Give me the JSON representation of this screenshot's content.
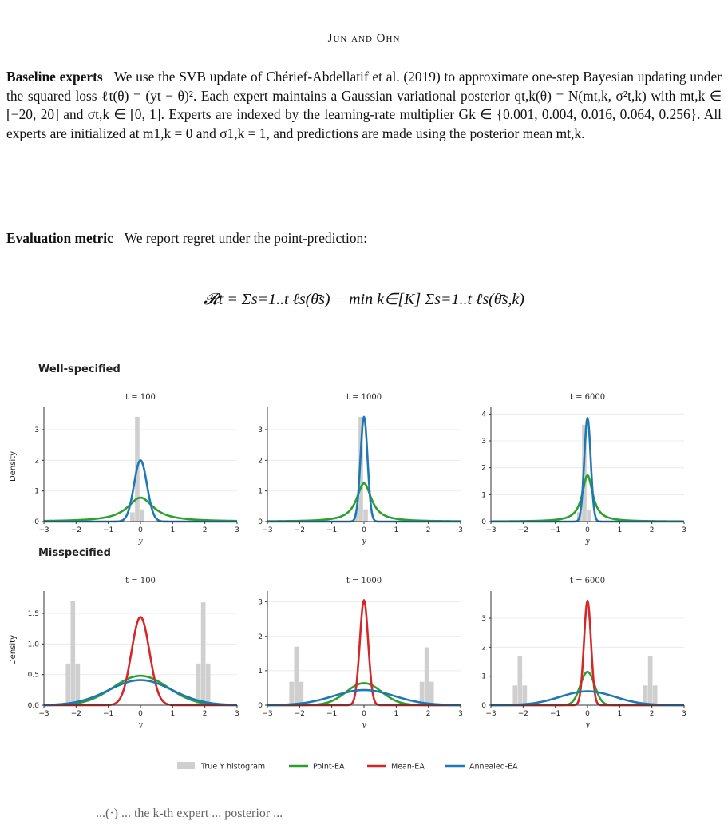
{
  "header": "Jun and Ohn",
  "para1": {
    "heading": "Baseline experts",
    "text": "We use the SVB update of Chérief-Abdellatif et al. (2019) to approximate one-step Bayesian updating under the squared loss ℓt(θ) = (yt − θ)². Each expert maintains a Gaussian variational posterior qt,k(θ) = N(mt,k, σ²t,k) with mt,k ∈ [−20, 20] and σt,k ∈ [0, 1]. Experts are indexed by the learning-rate multiplier Gk ∈ {0.001, 0.004, 0.016, 0.064, 0.256}. All experts are initialized at m1,k = 0 and σ1,k = 1, and predictions are made using the posterior mean mt,k."
  },
  "para2": {
    "heading": "Evaluation metric",
    "text": "We report regret under the point-prediction:"
  },
  "formula": "𝓡t = Σs=1..t ℓs(θ̄s) − min k∈[K] Σs=1..t ℓs(θ̄s,k)",
  "colors": {
    "hist": "#cfcfcf",
    "point": "#2ca02c",
    "mean": "#d62728",
    "annealed": "#1f77b4"
  },
  "chart_data": [
    {
      "type": "line",
      "row_title": "Well-specified",
      "title": "t = 100",
      "xlabel": "y",
      "ylabel": "Density",
      "xlim": [
        -3,
        3
      ],
      "ylim": [
        0,
        3.6
      ],
      "xticks": [
        -3,
        -2,
        -1,
        0,
        1,
        2,
        3
      ],
      "yticks": [
        0,
        1,
        2,
        3
      ],
      "histogram": {
        "name": "True Y histogram",
        "bins": [
          [
            -0.25,
            0.3
          ],
          [
            -0.1,
            3.42
          ],
          [
            0.05,
            0.4
          ]
        ]
      },
      "series": [
        {
          "name": "Point-EA",
          "center": 0,
          "peak": 0.78,
          "width": 0.5,
          "shape": "cauchy"
        },
        {
          "name": "Annealed-EA",
          "center": 0,
          "peak": 2.0,
          "width": 0.2,
          "shape": "gauss"
        }
      ]
    },
    {
      "type": "line",
      "title": "t = 1000",
      "xlabel": "y",
      "ylabel": "",
      "xlim": [
        -3,
        3
      ],
      "ylim": [
        0,
        3.6
      ],
      "xticks": [
        -3,
        -2,
        -1,
        0,
        1,
        2,
        3
      ],
      "yticks": [
        0,
        1,
        2,
        3
      ],
      "histogram": {
        "name": "True Y histogram",
        "bins": [
          [
            -0.25,
            0.3
          ],
          [
            -0.1,
            3.42
          ],
          [
            0.05,
            0.4
          ]
        ]
      },
      "series": [
        {
          "name": "Point-EA",
          "center": 0,
          "peak": 1.25,
          "width": 0.28,
          "shape": "cauchy"
        },
        {
          "name": "Annealed-EA",
          "center": 0,
          "peak": 3.42,
          "width": 0.11,
          "shape": "gauss"
        }
      ]
    },
    {
      "type": "line",
      "title": "t = 6000",
      "xlabel": "y",
      "ylabel": "",
      "xlim": [
        -3,
        3
      ],
      "ylim": [
        0,
        4.1
      ],
      "xticks": [
        -3,
        -2,
        -1,
        0,
        1,
        2,
        3
      ],
      "yticks": [
        0,
        1,
        2,
        3,
        4
      ],
      "histogram": {
        "name": "True Y histogram",
        "bins": [
          [
            -0.25,
            0.35
          ],
          [
            -0.1,
            3.6
          ],
          [
            0.05,
            0.45
          ]
        ]
      },
      "series": [
        {
          "name": "Point-EA",
          "center": 0,
          "peak": 1.72,
          "width": 0.2,
          "shape": "cauchy"
        },
        {
          "name": "Annealed-EA",
          "center": 0,
          "peak": 3.85,
          "width": 0.1,
          "shape": "gauss"
        }
      ]
    },
    {
      "type": "line",
      "row_title": "Misspecified",
      "title": "t = 100",
      "xlabel": "y",
      "ylabel": "Density",
      "xlim": [
        -3,
        3
      ],
      "ylim": [
        0,
        1.8
      ],
      "xticks": [
        -3,
        -2,
        -1,
        0,
        1,
        2,
        3
      ],
      "yticks": [
        0.0,
        0.5,
        1.0,
        1.5
      ],
      "histogram": {
        "name": "True Y histogram",
        "bins": [
          [
            -2.25,
            0.68
          ],
          [
            -2.1,
            1.7
          ],
          [
            -1.95,
            0.68
          ],
          [
            1.8,
            0.68
          ],
          [
            1.95,
            1.68
          ],
          [
            2.1,
            0.68
          ]
        ]
      },
      "series": [
        {
          "name": "Point-EA",
          "center": 0,
          "peak": 0.48,
          "width": 0.85,
          "shape": "gauss"
        },
        {
          "name": "Mean-EA",
          "center": 0,
          "peak": 1.44,
          "width": 0.28,
          "shape": "gauss"
        },
        {
          "name": "Annealed-EA",
          "center": 0,
          "peak": 0.41,
          "width": 0.98,
          "shape": "gauss"
        }
      ]
    },
    {
      "type": "line",
      "title": "t = 1000",
      "xlabel": "y",
      "ylabel": "",
      "xlim": [
        -3,
        3
      ],
      "ylim": [
        0,
        3.2
      ],
      "xticks": [
        -3,
        -2,
        -1,
        0,
        1,
        2,
        3
      ],
      "yticks": [
        0,
        1,
        2,
        3
      ],
      "histogram": {
        "name": "True Y histogram",
        "bins": [
          [
            -2.25,
            0.68
          ],
          [
            -2.1,
            1.7
          ],
          [
            -1.95,
            0.68
          ],
          [
            1.8,
            0.68
          ],
          [
            1.95,
            1.68
          ],
          [
            2.1,
            0.68
          ]
        ]
      },
      "series": [
        {
          "name": "Point-EA",
          "center": 0,
          "peak": 0.64,
          "width": 0.55,
          "shape": "gauss"
        },
        {
          "name": "Mean-EA",
          "center": 0,
          "peak": 3.05,
          "width": 0.13,
          "shape": "gauss"
        },
        {
          "name": "Annealed-EA",
          "center": 0,
          "peak": 0.44,
          "width": 0.95,
          "shape": "gauss"
        }
      ]
    },
    {
      "type": "line",
      "title": "t = 6000",
      "xlabel": "y",
      "ylabel": "",
      "xlim": [
        -3,
        3
      ],
      "ylim": [
        0,
        3.8
      ],
      "xticks": [
        -3,
        -2,
        -1,
        0,
        1,
        2,
        3
      ],
      "yticks": [
        0,
        1,
        2,
        3
      ],
      "histogram": {
        "name": "True Y histogram",
        "bins": [
          [
            -2.25,
            0.68
          ],
          [
            -2.1,
            1.7
          ],
          [
            -1.95,
            0.68
          ],
          [
            1.8,
            0.68
          ],
          [
            1.95,
            1.68
          ],
          [
            2.1,
            0.68
          ]
        ]
      },
      "series": [
        {
          "name": "Point-EA",
          "center": 0,
          "peak": 1.15,
          "width": 0.22,
          "shape": "gauss"
        },
        {
          "name": "Mean-EA",
          "center": 0,
          "peak": 3.6,
          "width": 0.11,
          "shape": "gauss"
        },
        {
          "name": "Annealed-EA",
          "center": 0,
          "peak": 0.48,
          "width": 0.85,
          "shape": "gauss"
        }
      ]
    }
  ],
  "legend": {
    "position": "bottom-center",
    "items": [
      "True Y histogram",
      "Point-EA",
      "Mean-EA",
      "Annealed-EA"
    ]
  },
  "footer_fragment": "...(·) ... the k-th expert ... posterior ..."
}
